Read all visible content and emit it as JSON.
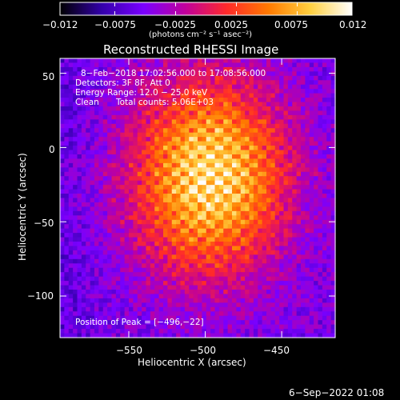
{
  "chart_data": {
    "type": "heatmap",
    "title": "Reconstructed RHESSI Image",
    "xlabel": "Heliocentric X (arcsec)",
    "ylabel": "Heliocentric Y (arcsec)",
    "xlim": [
      -595,
      -415
    ],
    "ylim": [
      -128,
      60
    ],
    "xticks": [
      -550,
      -500,
      -450
    ],
    "yticks": [
      50,
      0,
      -50,
      -100
    ],
    "xtick_labels": [
      "−550",
      "−500",
      "−450"
    ],
    "ytick_labels": [
      "50",
      "0",
      "−50",
      "−100"
    ],
    "colorbar": {
      "min": -0.012,
      "max": 0.012,
      "ticks": [
        -0.012,
        -0.0075,
        -0.0025,
        0.0025,
        0.0075,
        0.012
      ],
      "tick_labels": [
        "−0.012",
        "−0.0075",
        "−0.0025",
        "0.0025",
        "0.0075",
        "0.012"
      ],
      "unit_label": "(photons cm⁻² s⁻¹ asec⁻²)",
      "colormap": [
        "#000000",
        "#3300aa",
        "#7a00ff",
        "#c0009c",
        "#ff2a2a",
        "#ff7a00",
        "#ffd040",
        "#ffffff"
      ]
    },
    "annotations": {
      "time_range": "8−Feb−2018 17:02:56.000 to 17:08:56.000",
      "detectors": "Detectors: 3F 8F, Att 0",
      "energy_range": "Energy Range: 12.0 − 25.0 keV",
      "clean": "Clean",
      "total_counts": "Total counts: 5.06E+03",
      "peak": "Position of Peak = [−496,−22]"
    },
    "peak_position": [
      -496,
      -22
    ],
    "source_center": [
      -497,
      -20
    ]
  },
  "footer": {
    "timestamp": "6−Sep−2022 01:08"
  }
}
